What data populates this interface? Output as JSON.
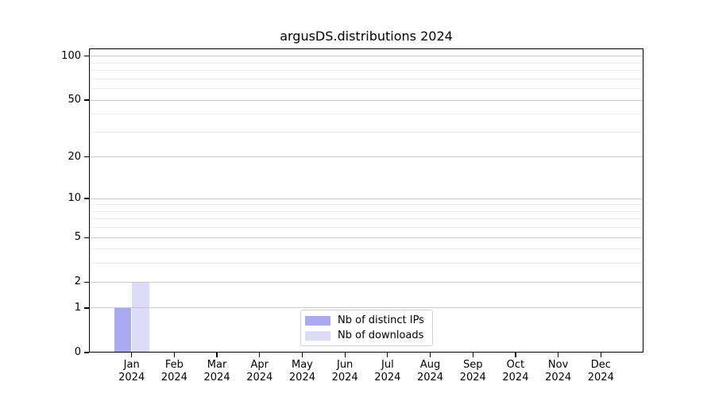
{
  "chart_data": {
    "type": "bar",
    "title": "argusDS.distributions 2024",
    "categories": [
      [
        "Jan",
        "2024"
      ],
      [
        "Feb",
        "2024"
      ],
      [
        "Mar",
        "2024"
      ],
      [
        "Apr",
        "2024"
      ],
      [
        "May",
        "2024"
      ],
      [
        "Jun",
        "2024"
      ],
      [
        "Jul",
        "2024"
      ],
      [
        "Aug",
        "2024"
      ],
      [
        "Sep",
        "2024"
      ],
      [
        "Oct",
        "2024"
      ],
      [
        "Nov",
        "2024"
      ],
      [
        "Dec",
        "2024"
      ]
    ],
    "series": [
      {
        "name": "Nb of distinct IPs",
        "color": "#a9a9f4",
        "values": [
          1,
          0,
          0,
          0,
          0,
          0,
          0,
          0,
          0,
          0,
          0,
          0
        ]
      },
      {
        "name": "Nb of downloads",
        "color": "#dcdcf8",
        "values": [
          2,
          0,
          0,
          0,
          0,
          0,
          0,
          0,
          0,
          0,
          0,
          0
        ]
      }
    ],
    "xlabel": "",
    "ylabel": "",
    "y_scale": "log1p",
    "ylim": [
      0,
      113
    ],
    "y_major_ticks": [
      0,
      1,
      2,
      5,
      10,
      20,
      50,
      100
    ],
    "y_minor_gridlines": [
      3,
      4,
      6,
      7,
      8,
      9,
      30,
      40,
      60,
      70,
      80,
      90
    ],
    "grid": "horizontal major+minor",
    "legend_position": "lower center"
  },
  "legend": {
    "items": [
      {
        "label": "Nb of distinct IPs",
        "color": "#a9a9f4"
      },
      {
        "label": "Nb of downloads",
        "color": "#dcdcf8"
      }
    ]
  },
  "colors": {
    "background": "#ffffff",
    "bar_distinct_ips": "#a9a9f4",
    "bar_downloads": "#dcdcf8",
    "grid_major": "#c9c9c9",
    "grid_minor": "#eaeaea",
    "spine": "#000000",
    "text": "#000000",
    "legend_border": "#cfcfcf"
  }
}
